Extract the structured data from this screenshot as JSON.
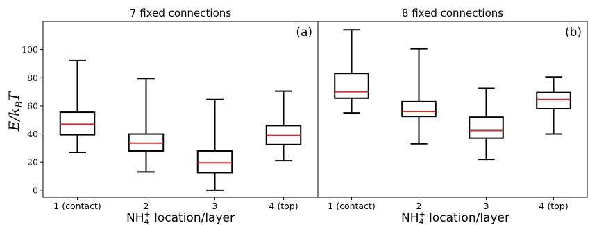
{
  "ylabel": {
    "main": "E/k",
    "sub": "B",
    "tail": "T"
  },
  "xlabel": {
    "pre": "NH",
    "sub": "4",
    "sup": "+",
    "post": " location/layer"
  },
  "chart_data": [
    {
      "type": "box",
      "title": "7 fixed connections",
      "panel_label": "(a)",
      "categories": [
        "1 (contact)",
        "2",
        "3",
        "4 (top)"
      ],
      "boxes": [
        {
          "whislo": 27,
          "q1": 39.5,
          "med": 47,
          "q3": 55.5,
          "whishi": 92.5
        },
        {
          "whislo": 13,
          "q1": 28,
          "med": 33.5,
          "q3": 40,
          "whishi": 79.5
        },
        {
          "whislo": 0,
          "q1": 12.5,
          "med": 19.5,
          "q3": 28,
          "whishi": 64.5
        },
        {
          "whislo": 21,
          "q1": 32.5,
          "med": 39,
          "q3": 46,
          "whishi": 70.5
        }
      ],
      "yticks": [
        0,
        20,
        40,
        60,
        80,
        100
      ],
      "ylim": [
        -5,
        120
      ],
      "ylabel": "E/k_B T",
      "xlabel": "NH4+ location/layer",
      "box_color": "#000000",
      "median_color": "#d62728"
    },
    {
      "type": "box",
      "title": "8 fixed connections",
      "panel_label": "(b)",
      "categories": [
        "1 (contact)",
        "2",
        "3",
        "4 (top)"
      ],
      "boxes": [
        {
          "whislo": 55,
          "q1": 65.5,
          "med": 70,
          "q3": 83,
          "whishi": 114
        },
        {
          "whislo": 33,
          "q1": 52.5,
          "med": 56,
          "q3": 63,
          "whishi": 100.5
        },
        {
          "whislo": 22,
          "q1": 37,
          "med": 42.5,
          "q3": 52,
          "whishi": 72.5
        },
        {
          "whislo": 40,
          "q1": 58,
          "med": 64.5,
          "q3": 69.5,
          "whishi": 80.5
        }
      ],
      "ylim": [
        -5,
        120
      ],
      "xlabel": "NH4+ location/layer",
      "box_color": "#000000",
      "median_color": "#d62728"
    }
  ]
}
